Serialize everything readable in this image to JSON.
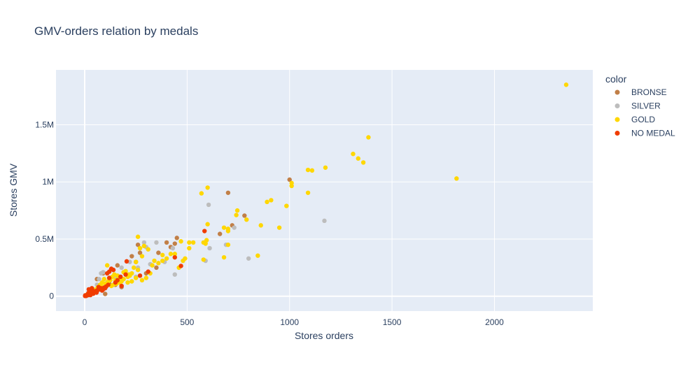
{
  "chart_data": {
    "type": "scatter",
    "title": "GMV-orders relation by medals",
    "xlabel": "Stores orders",
    "ylabel": "Stores GMV",
    "xlim": [
      -140,
      2480
    ],
    "ylim": [
      -130000,
      1980000
    ],
    "x_ticks": [
      0,
      500,
      1000,
      1500,
      2000
    ],
    "x_tick_labels": [
      "0",
      "500",
      "1000",
      "1500",
      "2000"
    ],
    "y_ticks": [
      0,
      500000,
      1000000,
      1500000
    ],
    "y_tick_labels": [
      "0",
      "0.5M",
      "1M",
      "1.5M"
    ],
    "grid": true,
    "legend": {
      "title": "color",
      "placement": "right"
    },
    "series": [
      {
        "name": "BRONSE",
        "color": "#c17f47",
        "points": [
          [
            1000,
            1020000
          ],
          [
            700,
            905000
          ],
          [
            780,
            705000
          ],
          [
            660,
            545000
          ],
          [
            450,
            510000
          ],
          [
            720,
            620000
          ],
          [
            260,
            450000
          ],
          [
            400,
            470000
          ],
          [
            440,
            460000
          ],
          [
            360,
            380000
          ],
          [
            230,
            350000
          ],
          [
            160,
            270000
          ],
          [
            270,
            380000
          ],
          [
            90,
            200000
          ],
          [
            60,
            150000
          ],
          [
            100,
            20000
          ],
          [
            180,
            80000
          ],
          [
            300,
            200000
          ],
          [
            350,
            250000
          ],
          [
            150,
            100000
          ],
          [
            40,
            40000
          ],
          [
            20,
            10000
          ],
          [
            420,
            430000
          ],
          [
            250,
            300000
          ],
          [
            120,
            110000
          ]
        ]
      },
      {
        "name": "SILVER",
        "color": "#bdbdbd",
        "points": [
          [
            1170,
            660000
          ],
          [
            605,
            800000
          ],
          [
            610,
            420000
          ],
          [
            690,
            450000
          ],
          [
            730,
            600000
          ],
          [
            800,
            330000
          ],
          [
            590,
            310000
          ],
          [
            440,
            190000
          ],
          [
            290,
            470000
          ],
          [
            350,
            470000
          ],
          [
            430,
            420000
          ],
          [
            300,
            430000
          ],
          [
            220,
            300000
          ],
          [
            180,
            250000
          ],
          [
            90,
            210000
          ],
          [
            80,
            200000
          ],
          [
            140,
            230000
          ],
          [
            260,
            250000
          ],
          [
            390,
            300000
          ],
          [
            150,
            170000
          ],
          [
            60,
            100000
          ],
          [
            40,
            60000
          ],
          [
            110,
            120000
          ],
          [
            200,
            200000
          ],
          [
            320,
            280000
          ],
          [
            70,
            150000
          ],
          [
            250,
            170000
          ],
          [
            180,
            90000
          ],
          [
            100,
            80000
          ],
          [
            30,
            30000
          ]
        ]
      },
      {
        "name": "GOLD",
        "color": "#ffd700",
        "points": [
          [
            2350,
            1850000
          ],
          [
            1815,
            1030000
          ],
          [
            1385,
            1390000
          ],
          [
            1310,
            1245000
          ],
          [
            1335,
            1205000
          ],
          [
            1360,
            1170000
          ],
          [
            1175,
            1125000
          ],
          [
            1090,
            1105000
          ],
          [
            1110,
            1100000
          ],
          [
            1090,
            905000
          ],
          [
            1010,
            965000
          ],
          [
            1010,
            990000
          ],
          [
            910,
            840000
          ],
          [
            890,
            825000
          ],
          [
            985,
            790000
          ],
          [
            950,
            600000
          ],
          [
            860,
            620000
          ],
          [
            845,
            355000
          ],
          [
            745,
            750000
          ],
          [
            740,
            710000
          ],
          [
            790,
            670000
          ],
          [
            700,
            590000
          ],
          [
            700,
            570000
          ],
          [
            680,
            600000
          ],
          [
            570,
            900000
          ],
          [
            600,
            950000
          ],
          [
            600,
            630000
          ],
          [
            580,
            470000
          ],
          [
            595,
            490000
          ],
          [
            590,
            460000
          ],
          [
            580,
            320000
          ],
          [
            680,
            340000
          ],
          [
            700,
            450000
          ],
          [
            530,
            470000
          ],
          [
            510,
            470000
          ],
          [
            490,
            330000
          ],
          [
            480,
            310000
          ],
          [
            470,
            480000
          ],
          [
            510,
            420000
          ],
          [
            440,
            370000
          ],
          [
            420,
            370000
          ],
          [
            400,
            330000
          ],
          [
            380,
            360000
          ],
          [
            360,
            290000
          ],
          [
            340,
            310000
          ],
          [
            310,
            410000
          ],
          [
            290,
            440000
          ],
          [
            270,
            420000
          ],
          [
            260,
            520000
          ],
          [
            280,
            350000
          ],
          [
            250,
            300000
          ],
          [
            240,
            250000
          ],
          [
            230,
            200000
          ],
          [
            220,
            180000
          ],
          [
            210,
            170000
          ],
          [
            200,
            220000
          ],
          [
            190,
            150000
          ],
          [
            180,
            130000
          ],
          [
            170,
            120000
          ],
          [
            160,
            180000
          ],
          [
            150,
            140000
          ],
          [
            140,
            100000
          ],
          [
            130,
            90000
          ],
          [
            120,
            160000
          ],
          [
            110,
            270000
          ],
          [
            100,
            110000
          ],
          [
            90,
            70000
          ],
          [
            80,
            90000
          ],
          [
            70,
            60000
          ],
          [
            60,
            50000
          ],
          [
            50,
            40000
          ],
          [
            40,
            30000
          ],
          [
            30,
            20000
          ],
          [
            20,
            15000
          ],
          [
            10,
            10000
          ],
          [
            300,
            160000
          ],
          [
            320,
            200000
          ],
          [
            250,
            160000
          ],
          [
            210,
            120000
          ],
          [
            170,
            170000
          ],
          [
            230,
            130000
          ],
          [
            280,
            140000
          ],
          [
            190,
            210000
          ],
          [
            145,
            190000
          ],
          [
            135,
            170000
          ],
          [
            115,
            130000
          ],
          [
            95,
            150000
          ],
          [
            85,
            120000
          ],
          [
            75,
            100000
          ],
          [
            65,
            80000
          ],
          [
            55,
            60000
          ],
          [
            45,
            50000
          ],
          [
            35,
            40000
          ],
          [
            25,
            30000
          ],
          [
            15,
            20000
          ],
          [
            5,
            5000
          ],
          [
            460,
            250000
          ],
          [
            380,
            310000
          ],
          [
            330,
            270000
          ],
          [
            260,
            230000
          ],
          [
            215,
            190000
          ],
          [
            175,
            140000
          ],
          [
            155,
            110000
          ],
          [
            125,
            140000
          ],
          [
            105,
            95000
          ]
        ]
      },
      {
        "name": "NO MEDAL",
        "color": "#f03c00",
        "points": [
          [
            585,
            570000
          ],
          [
            470,
            265000
          ],
          [
            310,
            215000
          ],
          [
            270,
            180000
          ],
          [
            205,
            305000
          ],
          [
            140,
            230000
          ],
          [
            130,
            240000
          ],
          [
            120,
            215000
          ],
          [
            110,
            200000
          ],
          [
            100,
            70000
          ],
          [
            90,
            60000
          ],
          [
            80,
            70000
          ],
          [
            70,
            60000
          ],
          [
            60,
            50000
          ],
          [
            50,
            40000
          ],
          [
            40,
            30000
          ],
          [
            30,
            25000
          ],
          [
            25,
            20000
          ],
          [
            20,
            15000
          ],
          [
            15,
            10000
          ],
          [
            10,
            8000
          ],
          [
            5,
            5000
          ],
          [
            2,
            2000
          ],
          [
            120,
            160000
          ],
          [
            150,
            120000
          ],
          [
            175,
            170000
          ],
          [
            180,
            90000
          ],
          [
            20,
            60000
          ],
          [
            35,
            70000
          ],
          [
            45,
            35000
          ],
          [
            55,
            45000
          ],
          [
            65,
            55000
          ],
          [
            75,
            65000
          ],
          [
            85,
            50000
          ],
          [
            95,
            75000
          ],
          [
            105,
            85000
          ],
          [
            115,
            100000
          ],
          [
            440,
            340000
          ],
          [
            200,
            190000
          ],
          [
            160,
            140000
          ],
          [
            30,
            45000
          ],
          [
            12,
            12000
          ],
          [
            8,
            3000
          ],
          [
            3,
            8000
          ],
          [
            28,
            10000
          ],
          [
            18,
            28000
          ],
          [
            42,
            22000
          ],
          [
            58,
            32000
          ],
          [
            68,
            80000
          ],
          [
            38,
            52000
          ]
        ]
      }
    ]
  }
}
